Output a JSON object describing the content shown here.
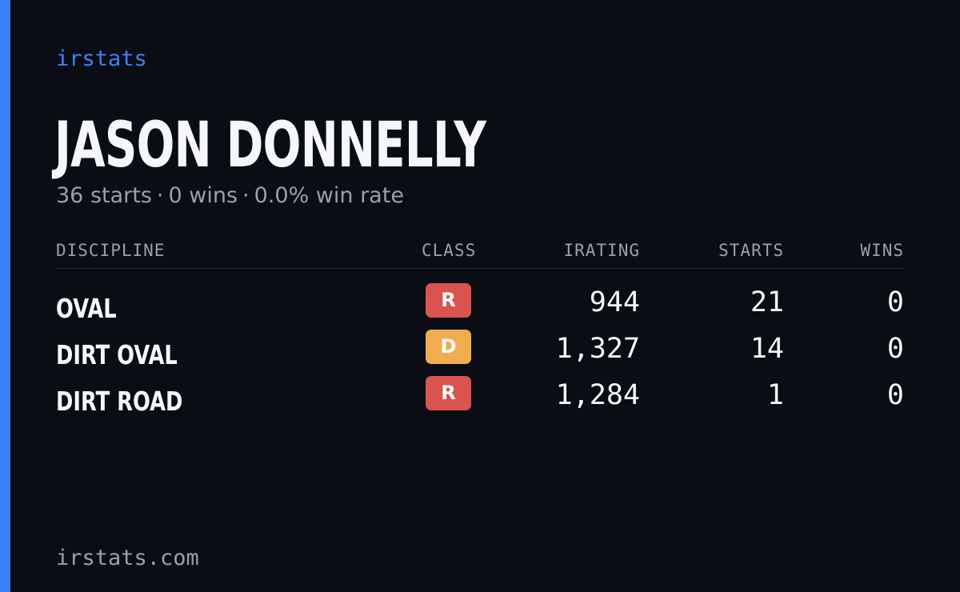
{
  "brand": "irstats",
  "player": {
    "name": "JASON DONNELLY",
    "summary": {
      "starts": "36 starts",
      "wins": "0 wins",
      "win_rate": "0.0% win rate",
      "separator": "·"
    }
  },
  "table": {
    "headers": {
      "discipline": "DISCIPLINE",
      "class": "CLASS",
      "irating": "IRATING",
      "starts": "STARTS",
      "wins": "WINS"
    },
    "rows": [
      {
        "discipline": "OVAL",
        "class": "R",
        "class_color": "#d9534f",
        "irating": "944",
        "starts": "21",
        "wins": "0"
      },
      {
        "discipline": "DIRT OVAL",
        "class": "D",
        "class_color": "#f0ad4e",
        "irating": "1,327",
        "starts": "14",
        "wins": "0"
      },
      {
        "discipline": "DIRT ROAD",
        "class": "R",
        "class_color": "#d9534f",
        "irating": "1,284",
        "starts": "1",
        "wins": "0"
      }
    ]
  },
  "footer": "irstats.com",
  "colors": {
    "accent": "#3b82f6",
    "background": "#0a0d14",
    "muted_text": "#97a0b0"
  }
}
